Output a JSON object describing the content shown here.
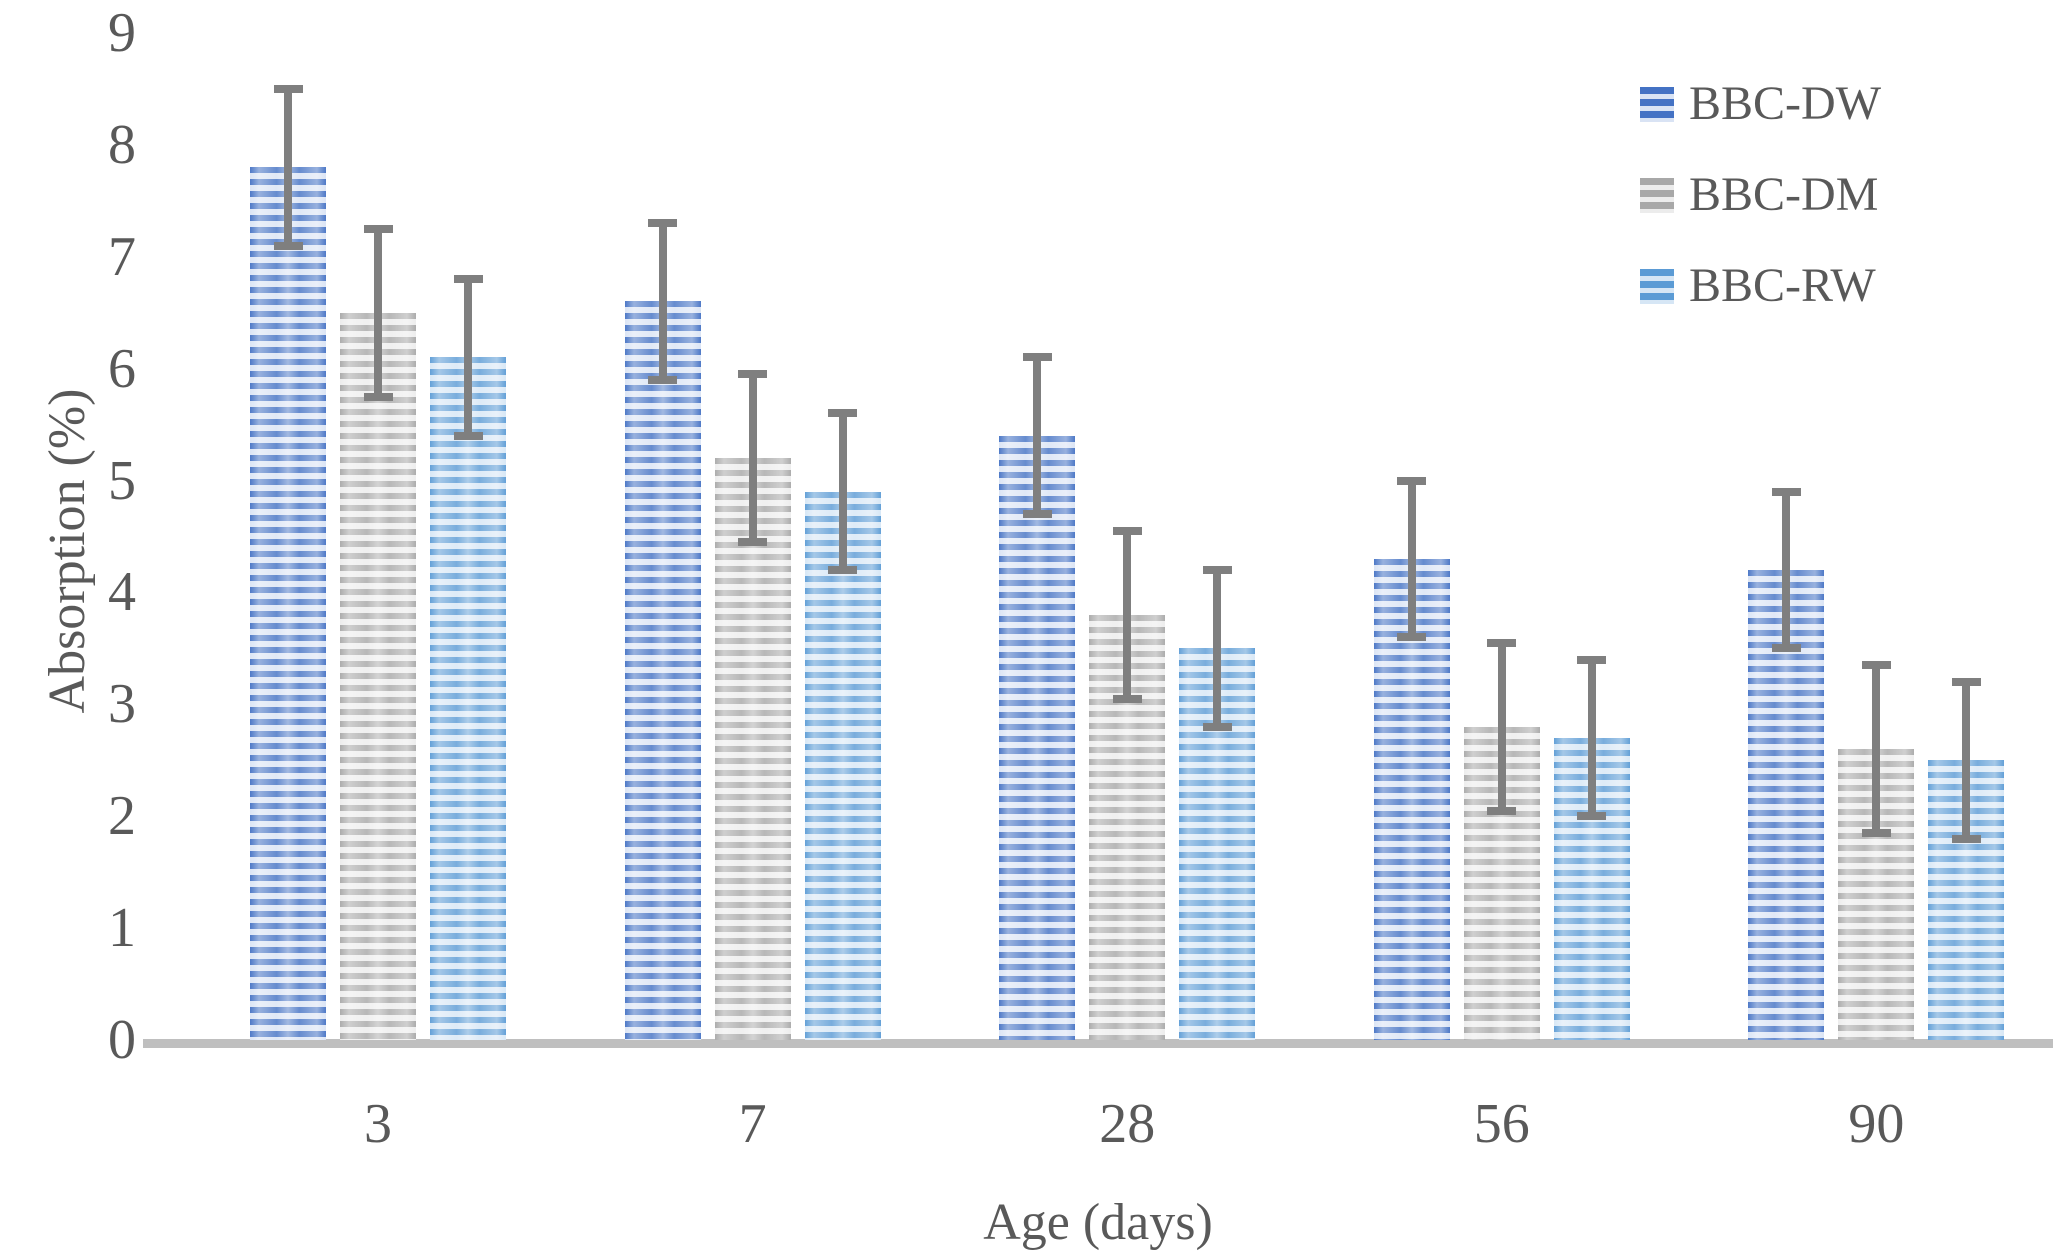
{
  "chart_data": {
    "type": "bar",
    "title": "",
    "xlabel": "Age (days)",
    "ylabel": "Absorption (%)",
    "categories": [
      "3",
      "7",
      "28",
      "56",
      "90"
    ],
    "series": [
      {
        "name": "BBC-DW",
        "values": [
          7.8,
          6.6,
          5.4,
          4.3,
          4.2
        ],
        "error": [
          0.7,
          0.7,
          0.7,
          0.7,
          0.7
        ],
        "stripe_dark": "#4472c4",
        "stripe_light": "#d9e3f4"
      },
      {
        "name": "BBC-DM",
        "values": [
          6.5,
          5.2,
          3.8,
          2.8,
          2.6
        ],
        "error": [
          0.75,
          0.75,
          0.75,
          0.75,
          0.75
        ],
        "stripe_dark": "#a8a8a8",
        "stripe_light": "#ececec"
      },
      {
        "name": "BBC-RW",
        "values": [
          6.1,
          4.9,
          3.5,
          2.7,
          2.5
        ],
        "error": [
          0.7,
          0.7,
          0.7,
          0.7,
          0.7
        ],
        "stripe_dark": "#5b9bd5",
        "stripe_light": "#d6e6f5"
      }
    ],
    "ylim": [
      0,
      9
    ],
    "yticks": [
      0,
      1,
      2,
      3,
      4,
      5,
      6,
      7,
      8,
      9
    ],
    "grid": false,
    "legend_position": "top-right",
    "bar_pattern": "horizontal-stripes",
    "error_bar_color": "#7f7f7f",
    "axis_line_color": "#bfbfbf",
    "text_color": "#595959"
  }
}
